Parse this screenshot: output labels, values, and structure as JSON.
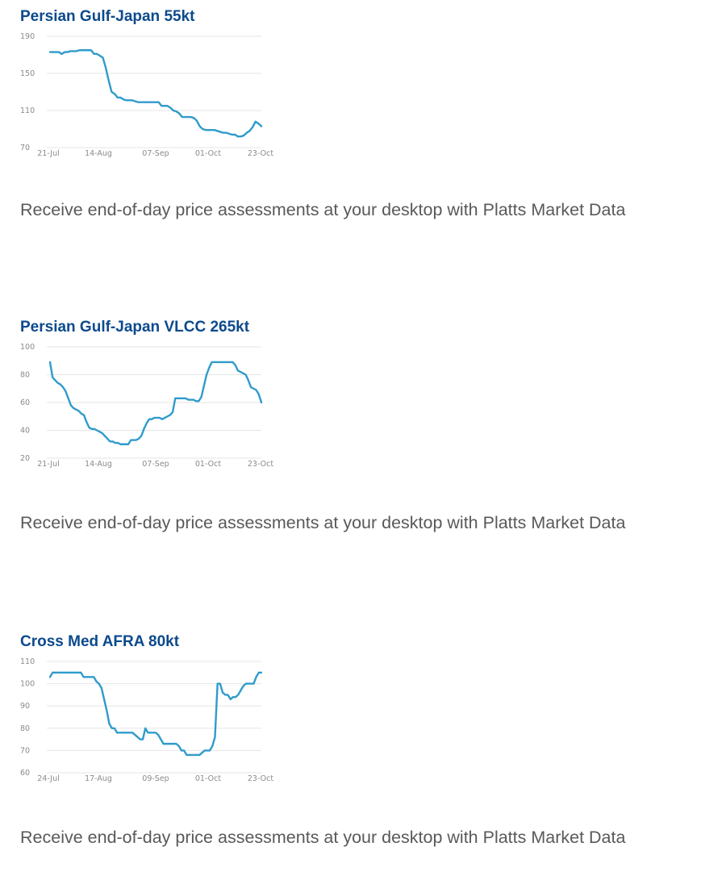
{
  "colors": {
    "title": "#0c4a8c",
    "line": "#2f9bcc",
    "caption": "#595959"
  },
  "charts": [
    {
      "title": "Persian Gulf-Japan 55kt",
      "caption": "Receive end-of-day price assessments at your desktop with Platts Market Data"
    },
    {
      "title": "Persian Gulf-Japan VLCC 265kt",
      "caption": "Receive end-of-day price assessments at your desktop with Platts Market Data"
    },
    {
      "title": "Cross Med AFRA 80kt",
      "caption": "Receive end-of-day price assessments at your desktop with Platts Market Data"
    }
  ],
  "chart_data": [
    {
      "type": "line",
      "title": "Persian Gulf-Japan 55kt",
      "x_start": "21-Jul",
      "x_end": "23-Oct",
      "xticks": [
        "21-Jul",
        "14-Aug",
        "07-Sep",
        "01-Oct",
        "23-Oct"
      ],
      "yticks": [
        190,
        150,
        110,
        70
      ],
      "ylim": [
        70,
        190
      ],
      "series": [
        {
          "values": [
            173,
            173,
            173,
            173,
            171,
            173,
            173,
            174,
            174,
            174,
            175,
            175,
            175,
            175,
            175,
            171,
            171,
            169,
            167,
            156,
            142,
            130,
            128,
            124,
            124,
            122,
            121,
            121,
            121,
            120,
            119,
            119,
            119,
            119,
            119,
            119,
            119,
            119,
            115,
            115,
            115,
            113,
            110,
            109,
            107,
            103,
            103,
            103,
            103,
            102,
            99,
            93,
            90,
            89,
            89,
            89,
            89,
            88,
            87,
            86,
            86,
            85,
            84,
            84,
            82,
            82,
            83,
            86,
            88,
            92,
            98,
            96,
            93
          ]
        }
      ]
    },
    {
      "type": "line",
      "title": "Persian Gulf-Japan VLCC 265kt",
      "x_start": "21-Jul",
      "x_end": "23-Oct",
      "xticks": [
        "21-Jul",
        "14-Aug",
        "07-Sep",
        "01-Oct",
        "23-Oct"
      ],
      "yticks": [
        100,
        80,
        60,
        40,
        20
      ],
      "ylim": [
        20,
        100
      ],
      "series": [
        {
          "values": [
            89,
            78,
            76,
            74,
            73,
            71,
            68,
            63,
            58,
            56,
            55,
            54,
            52,
            51,
            46,
            42,
            41,
            41,
            40,
            39,
            38,
            36,
            34,
            32,
            32,
            31,
            31,
            30,
            30,
            30,
            30,
            33,
            33,
            33,
            34,
            36,
            41,
            45,
            48,
            48,
            49,
            49,
            49,
            48,
            49,
            50,
            51,
            53,
            63,
            63,
            63,
            63,
            63,
            62,
            62,
            62,
            61,
            61,
            64,
            72,
            80,
            85,
            89,
            89,
            89,
            89,
            89,
            89,
            89,
            89,
            89,
            87,
            83,
            82,
            81,
            80,
            76,
            71,
            70,
            69,
            66,
            60
          ]
        }
      ]
    },
    {
      "type": "line",
      "title": "Cross Med AFRA 80kt",
      "x_start": "24-Jul",
      "x_end": "23-Oct",
      "xticks": [
        "24-Jul",
        "17-Aug",
        "09-Sep",
        "01-Oct",
        "23-Oct"
      ],
      "yticks": [
        110,
        100,
        90,
        80,
        70,
        60
      ],
      "ylim": [
        60,
        110
      ],
      "series": [
        {
          "values": [
            103,
            105,
            105,
            105,
            105,
            105,
            105,
            105,
            105,
            105,
            105,
            105,
            105,
            103,
            103,
            103,
            103,
            103,
            101,
            100,
            98,
            93,
            88,
            82,
            80,
            80,
            78,
            78,
            78,
            78,
            78,
            78,
            78,
            77,
            76,
            75,
            75,
            80,
            78,
            78,
            78,
            78,
            77,
            75,
            73,
            73,
            73,
            73,
            73,
            73,
            72,
            70,
            70,
            68,
            68,
            68,
            68,
            68,
            68,
            69,
            70,
            70,
            70,
            72,
            76,
            100,
            100,
            96,
            95,
            95,
            93,
            94,
            94,
            95,
            97,
            99,
            100,
            100,
            100,
            100,
            103,
            105,
            105
          ]
        }
      ]
    }
  ]
}
